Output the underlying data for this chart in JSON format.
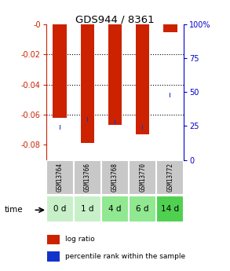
{
  "title": "GDS944 / 8361",
  "categories": [
    "GSM13764",
    "GSM13766",
    "GSM13768",
    "GSM13770",
    "GSM13772"
  ],
  "time_labels": [
    "0 d",
    "1 d",
    "4 d",
    "6 d",
    "14 d"
  ],
  "log_ratio": [
    -0.062,
    -0.079,
    -0.067,
    -0.073,
    -0.005
  ],
  "percentile_rank": [
    24,
    30,
    28,
    24,
    48
  ],
  "ylim_left": [
    -0.09,
    0.0
  ],
  "ylim_right": [
    0,
    100
  ],
  "left_ticks": [
    0.0,
    -0.02,
    -0.04,
    -0.06,
    -0.08
  ],
  "right_ticks": [
    100,
    75,
    50,
    25,
    0
  ],
  "bar_color_red": "#cc2200",
  "bar_color_blue": "#1133cc",
  "bg_color": "#ffffff",
  "label_box_color": "#c8c8c8",
  "time_box_colors": [
    "#c8f0c8",
    "#c8f0c8",
    "#90e890",
    "#90e890",
    "#50d050"
  ],
  "dotted_lines": [
    -0.02,
    -0.04,
    -0.06
  ],
  "left_axis_color": "#cc2200",
  "right_axis_color": "#0000cc",
  "red_bar_width": 0.5,
  "blue_square_size": 0.003
}
